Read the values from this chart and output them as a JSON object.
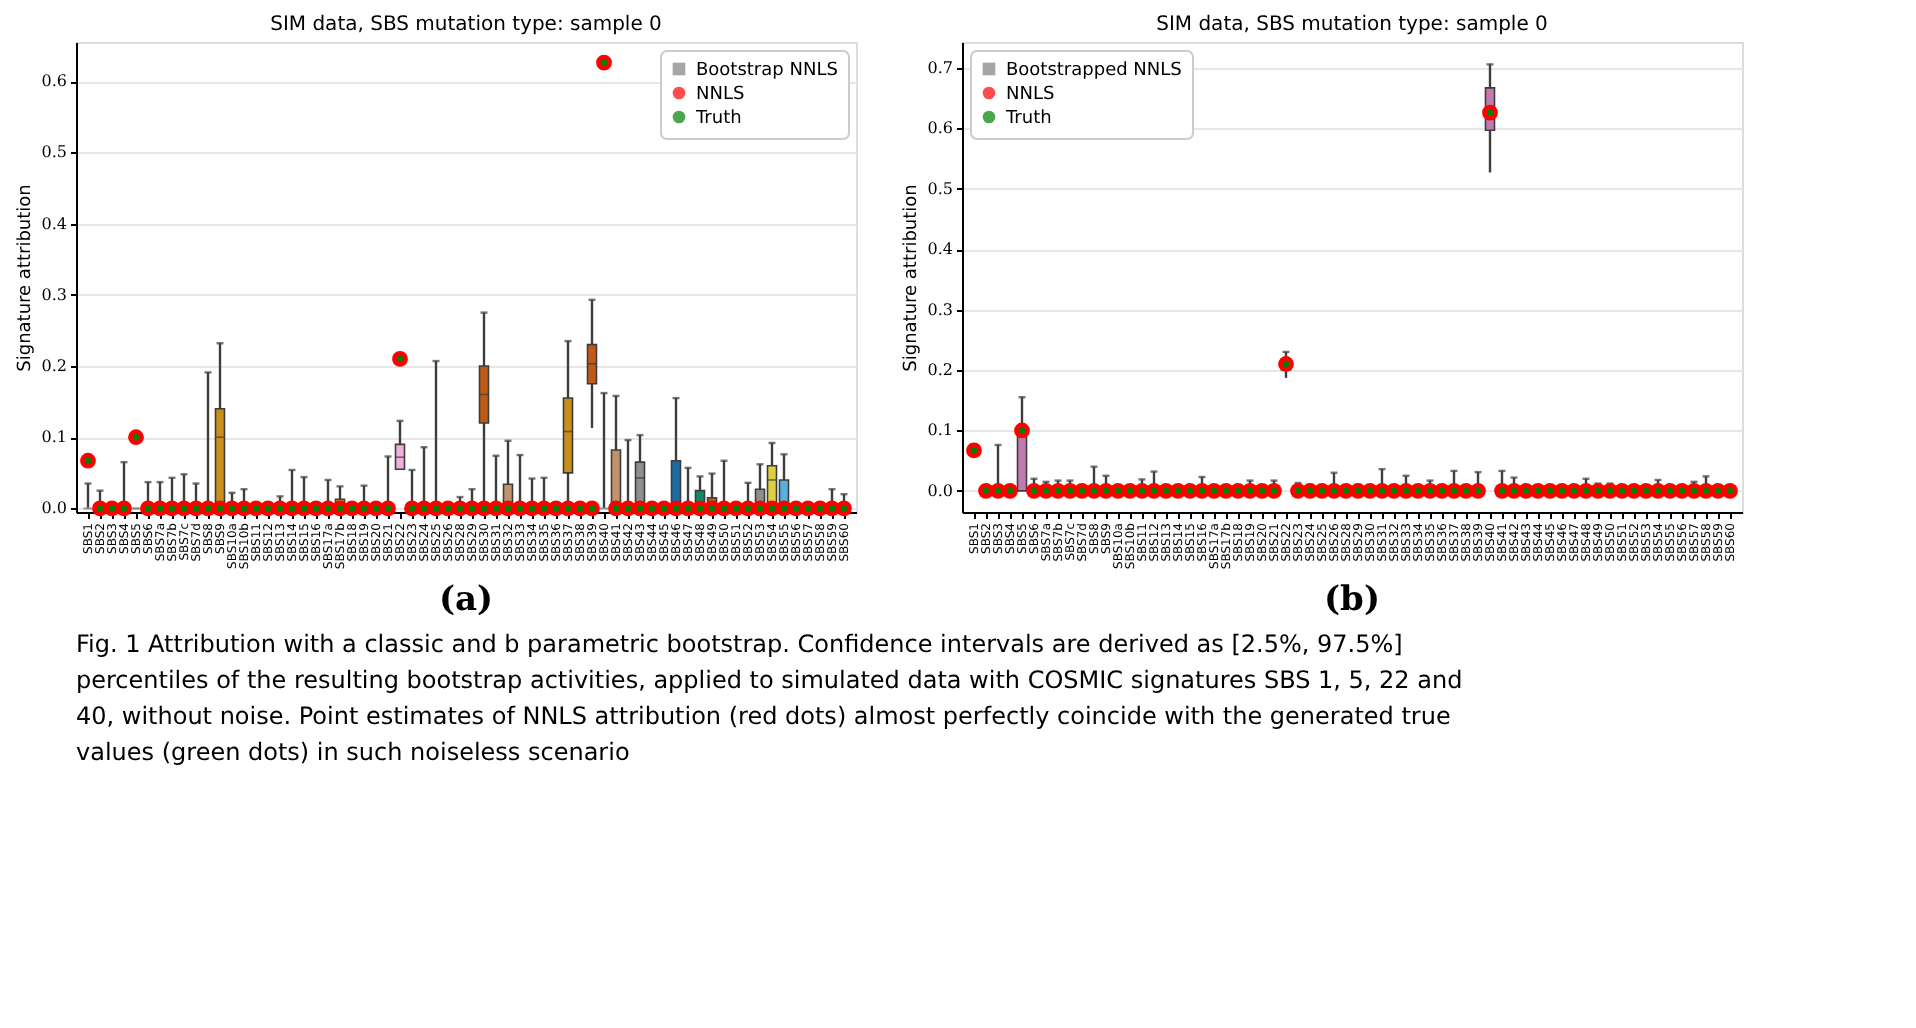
{
  "chart_data": [
    {
      "type": "box",
      "title": "SIM data, SBS mutation type: sample 0",
      "ylabel": "Signature attribution",
      "legend": "top right",
      "grid": "y",
      "ylim": [
        -0.005,
        0.655
      ],
      "yticks": [
        {
          "value": 0,
          "label": "0.0"
        },
        0.1,
        0.2,
        0.3,
        0.4,
        0.5,
        0.6
      ],
      "annotations": [
        "(a)",
        "Fig. 1  Attribution with a classic and b parametric bootstrap. Confidence intervals are derived as [2.5%, 97.5%] percentiles of the resulting bootstrap activities, applied to simulated data with COSMIC signatures SBS 1, 5, 22 and 40, without noise. Point estimates of NNLS attribution (red dots) almost perfectly coincide with the generated true values (green dots) in such noiseless scenario"
      ],
      "categories": [
        "SBS1",
        "SBS2",
        "SBS3",
        "SBS4",
        "SBS5",
        "SBS6",
        "SBS7a",
        "SBS7b",
        "SBS7c",
        "SBS7d",
        "SBS8",
        "SBS9",
        "SBS10a",
        "SBS10b",
        "SBS11",
        "SBS12",
        "SBS13",
        "SBS14",
        "SBS15",
        "SBS16",
        "SBS17a",
        "SBS17b",
        "SBS18",
        "SBS19",
        "SBS20",
        "SBS21",
        "SBS22",
        "SBS23",
        "SBS24",
        "SBS25",
        "SBS26",
        "SBS28",
        "SBS29",
        "SBS30",
        "SBS31",
        "SBS32",
        "SBS33",
        "SBS34",
        "SBS35",
        "SBS36",
        "SBS37",
        "SBS38",
        "SBS39",
        "SBS40",
        "SBS41",
        "SBS42",
        "SBS43",
        "SBS44",
        "SBS45",
        "SBS46",
        "SBS47",
        "SBS48",
        "SBS49",
        "SBS50",
        "SBS51",
        "SBS52",
        "SBS53",
        "SBS54",
        "SBS55",
        "SBS56",
        "SBS57",
        "SBS58",
        "SBS59",
        "SBS60"
      ],
      "series": [
        {
          "name": "Bootstrap NNLS",
          "type": "box",
          "color": "#808080",
          "colors": [
            "#8e8e8e",
            "#8e8e8e",
            "#8e8e8e",
            "#8e8e8e",
            "#8e8e8e",
            "#8e8e8e",
            "#8e8e8e",
            "#8e8e8e",
            "#8e8e8e",
            "#8e8e8e",
            "#8e8e8e",
            "#c8901a",
            "#8e8e8e",
            "#8e8e8e",
            "#8e8e8e",
            "#8e8e8e",
            "#8e8e8e",
            "#8e8e8e",
            "#8e8e8e",
            "#8e8e8e",
            "#8e8e8e",
            "#c8901a",
            "#8e8e8e",
            "#8e8e8e",
            "#8e8e8e",
            "#8e8e8e",
            "#f0b0dc",
            "#8e8e8e",
            "#8e8e8e",
            "#8e8e8e",
            "#8e8e8e",
            "#8e8e8e",
            "#8e8e8e",
            "#c05a14",
            "#8e8e8e",
            "#c0936a",
            "#8e8e8e",
            "#8e8e8e",
            "#8e8e8e",
            "#8e8e8e",
            "#c8901a",
            "#8e8e8e",
            "#c05a14",
            "#8e8e8e",
            "#c0936a",
            "#8e8e8e",
            "#8e8e8e",
            "#8e8e8e",
            "#8e8e8e",
            "#1a6aa5",
            "#8e8e8e",
            "#0f8a6a",
            "#c05a14",
            "#8e8e8e",
            "#8e8e8e",
            "#8e8e8e",
            "#8e8e8e",
            "#dcd040",
            "#5aaee0",
            "#8e8e8e",
            "#8e8e8e",
            "#8e8e8e",
            "#8e8e8e",
            "#8e8e8e"
          ],
          "boxes": [
            {
              "low": 0,
              "q1": 0,
              "median": 0,
              "q3": 0,
              "high": 0.035
            },
            {
              "low": 0,
              "q1": 0,
              "median": 0,
              "q3": 0,
              "high": 0.025
            },
            {
              "low": 0,
              "q1": 0,
              "median": 0,
              "q3": 0,
              "high": 0
            },
            {
              "low": 0,
              "q1": 0,
              "median": 0,
              "q3": 0,
              "high": 0.065
            },
            {
              "low": 0,
              "q1": 0,
              "median": 0,
              "q3": 0,
              "high": 0
            },
            {
              "low": 0,
              "q1": 0,
              "median": 0,
              "q3": 0,
              "high": 0.037
            },
            {
              "low": 0,
              "q1": 0,
              "median": 0,
              "q3": 0,
              "high": 0.037
            },
            {
              "low": 0,
              "q1": 0,
              "median": 0,
              "q3": 0,
              "high": 0.043
            },
            {
              "low": 0,
              "q1": 0,
              "median": 0,
              "q3": 0,
              "high": 0.048
            },
            {
              "low": 0,
              "q1": 0,
              "median": 0,
              "q3": 0,
              "high": 0.035
            },
            {
              "low": 0,
              "q1": 0,
              "median": 0,
              "q3": 0,
              "high": 0.191
            },
            {
              "low": 0,
              "q1": 0,
              "median": 0.1,
              "q3": 0.14,
              "high": 0.232
            },
            {
              "low": 0,
              "q1": 0,
              "median": 0,
              "q3": 0,
              "high": 0.022
            },
            {
              "low": 0,
              "q1": 0,
              "median": 0,
              "q3": 0,
              "high": 0.027
            },
            {
              "low": 0,
              "q1": 0,
              "median": 0,
              "q3": 0,
              "high": 0
            },
            {
              "low": 0,
              "q1": 0,
              "median": 0,
              "q3": 0,
              "high": 0
            },
            {
              "low": 0,
              "q1": 0,
              "median": 0,
              "q3": 0,
              "high": 0.017
            },
            {
              "low": 0,
              "q1": 0,
              "median": 0,
              "q3": 0,
              "high": 0.054
            },
            {
              "low": 0,
              "q1": 0,
              "median": 0,
              "q3": 0,
              "high": 0.044
            },
            {
              "low": 0,
              "q1": 0,
              "median": 0,
              "q3": 0,
              "high": 0
            },
            {
              "low": 0,
              "q1": 0,
              "median": 0,
              "q3": 0,
              "high": 0.04
            },
            {
              "low": 0,
              "q1": 0,
              "median": 0,
              "q3": 0.013,
              "high": 0.031
            },
            {
              "low": 0,
              "q1": 0,
              "median": 0,
              "q3": 0,
              "high": 0
            },
            {
              "low": 0,
              "q1": 0,
              "median": 0,
              "q3": 0,
              "high": 0.032
            },
            {
              "low": 0,
              "q1": 0,
              "median": 0,
              "q3": 0,
              "high": 0
            },
            {
              "low": 0,
              "q1": 0,
              "median": 0,
              "q3": 0,
              "high": 0.073
            },
            {
              "low": 0.055,
              "q1": 0.055,
              "median": 0.072,
              "q3": 0.09,
              "high": 0.123
            },
            {
              "low": 0,
              "q1": 0,
              "median": 0,
              "q3": 0,
              "high": 0.054
            },
            {
              "low": 0,
              "q1": 0,
              "median": 0,
              "q3": 0,
              "high": 0.086
            },
            {
              "low": 0,
              "q1": 0,
              "median": 0,
              "q3": 0,
              "high": 0.207
            },
            {
              "low": 0,
              "q1": 0,
              "median": 0,
              "q3": 0,
              "high": 0
            },
            {
              "low": 0,
              "q1": 0,
              "median": 0,
              "q3": 0,
              "high": 0.016
            },
            {
              "low": 0,
              "q1": 0,
              "median": 0,
              "q3": 0,
              "high": 0.027
            },
            {
              "low": 0,
              "q1": 0.12,
              "median": 0.16,
              "q3": 0.2,
              "high": 0.275
            },
            {
              "low": 0,
              "q1": 0,
              "median": 0,
              "q3": 0,
              "high": 0.074
            },
            {
              "low": 0,
              "q1": 0,
              "median": 0,
              "q3": 0.034,
              "high": 0.095
            },
            {
              "low": 0,
              "q1": 0,
              "median": 0,
              "q3": 0,
              "high": 0.075
            },
            {
              "low": 0,
              "q1": 0,
              "median": 0,
              "q3": 0,
              "high": 0.042
            },
            {
              "low": 0,
              "q1": 0,
              "median": 0,
              "q3": 0,
              "high": 0.043
            },
            {
              "low": 0,
              "q1": 0,
              "median": 0,
              "q3": 0,
              "high": 0
            },
            {
              "low": 0,
              "q1": 0.05,
              "median": 0.108,
              "q3": 0.155,
              "high": 0.235
            },
            {
              "low": 0,
              "q1": 0,
              "median": 0,
              "q3": 0,
              "high": 0
            },
            {
              "low": 0.113,
              "q1": 0.175,
              "median": 0.203,
              "q3": 0.23,
              "high": 0.293
            },
            {
              "low": 0,
              "q1": 0,
              "median": 0,
              "q3": 0,
              "high": 0.162
            },
            {
              "low": 0,
              "q1": 0,
              "median": 0,
              "q3": 0.082,
              "high": 0.158
            },
            {
              "low": 0,
              "q1": 0,
              "median": 0,
              "q3": 0,
              "high": 0.096
            },
            {
              "low": 0,
              "q1": 0,
              "median": 0.043,
              "q3": 0.065,
              "high": 0.103
            },
            {
              "low": 0,
              "q1": 0,
              "median": 0,
              "q3": 0,
              "high": 0
            },
            {
              "low": 0,
              "q1": 0,
              "median": 0,
              "q3": 0,
              "high": 0
            },
            {
              "low": 0,
              "q1": 0,
              "median": 0,
              "q3": 0.067,
              "high": 0.155
            },
            {
              "low": 0,
              "q1": 0,
              "median": 0,
              "q3": 0,
              "high": 0.057
            },
            {
              "low": 0,
              "q1": 0,
              "median": 0,
              "q3": 0.025,
              "high": 0.045
            },
            {
              "low": 0,
              "q1": 0,
              "median": 0,
              "q3": 0.015,
              "high": 0.049
            },
            {
              "low": 0,
              "q1": 0,
              "median": 0,
              "q3": 0,
              "high": 0.067
            },
            {
              "low": 0,
              "q1": 0,
              "median": 0,
              "q3": 0,
              "high": 0
            },
            {
              "low": 0,
              "q1": 0,
              "median": 0,
              "q3": 0,
              "high": 0.036
            },
            {
              "low": 0,
              "q1": 0,
              "median": 0,
              "q3": 0.027,
              "high": 0.062
            },
            {
              "low": 0,
              "q1": 0,
              "median": 0.04,
              "q3": 0.06,
              "high": 0.092
            },
            {
              "low": 0,
              "q1": 0,
              "median": 0,
              "q3": 0.04,
              "high": 0.076
            },
            {
              "low": 0,
              "q1": 0,
              "median": 0,
              "q3": 0,
              "high": 0
            },
            {
              "low": 0,
              "q1": 0,
              "median": 0,
              "q3": 0,
              "high": 0
            },
            {
              "low": 0,
              "q1": 0,
              "median": 0,
              "q3": 0,
              "high": 0
            },
            {
              "low": 0,
              "q1": 0,
              "median": 0,
              "q3": 0,
              "high": 0.027
            },
            {
              "low": 0,
              "q1": 0,
              "median": 0,
              "q3": 0,
              "high": 0.02
            }
          ]
        },
        {
          "name": "NNLS",
          "type": "scatter",
          "marker": "circle",
          "color": "#ff0000",
          "values": [
            0.067,
            0,
            0,
            0,
            0.1,
            0,
            0,
            0,
            0,
            0,
            0,
            0,
            0,
            0,
            0,
            0,
            0,
            0,
            0,
            0,
            0,
            0,
            0,
            0,
            0,
            0,
            0.21,
            0,
            0,
            0,
            0,
            0,
            0,
            0,
            0,
            0,
            0,
            0,
            0,
            0,
            0,
            0,
            0,
            0.626,
            0,
            0,
            0,
            0,
            0,
            0,
            0,
            0,
            0,
            0,
            0,
            0,
            0,
            0,
            0,
            0,
            0,
            0,
            0,
            0
          ]
        },
        {
          "name": "Truth",
          "type": "scatter",
          "marker": "circle",
          "color": "#008000",
          "values": [
            0.067,
            0,
            0,
            0,
            0.1,
            0,
            0,
            0,
            0,
            0,
            0,
            0,
            0,
            0,
            0,
            0,
            0,
            0,
            0,
            0,
            0,
            0,
            0,
            0,
            0,
            0,
            0.21,
            0,
            0,
            0,
            0,
            0,
            0,
            0,
            0,
            0,
            0,
            0,
            0,
            0,
            0,
            0,
            0,
            0.626,
            0,
            0,
            0,
            0,
            0,
            0,
            0,
            0,
            0,
            0,
            0,
            0,
            0,
            0,
            0,
            0,
            0,
            0,
            0,
            0
          ]
        }
      ]
    },
    {
      "type": "box",
      "title": "SIM data, SBS mutation type: sample 0",
      "ylabel": "Signature attribution",
      "legend": "top left",
      "grid": "y",
      "ylim": [
        -0.035,
        0.743
      ],
      "yticks": [
        {
          "value": 0,
          "label": "0.0"
        },
        0.1,
        0.2,
        0.3,
        0.4,
        0.5,
        0.6,
        0.7
      ],
      "annotations": [
        "(b)"
      ],
      "categories": [
        "SBS1",
        "SBS2",
        "SBS3",
        "SBS4",
        "SBS5",
        "SBS6",
        "SBS7a",
        "SBS7b",
        "SBS7c",
        "SBS7d",
        "SBS8",
        "SBS9",
        "SBS10a",
        "SBS10b",
        "SBS11",
        "SBS12",
        "SBS13",
        "SBS14",
        "SBS15",
        "SBS16",
        "SBS17a",
        "SBS17b",
        "SBS18",
        "SBS19",
        "SBS20",
        "SBS21",
        "SBS22",
        "SBS23",
        "SBS24",
        "SBS25",
        "SBS26",
        "SBS28",
        "SBS29",
        "SBS30",
        "SBS31",
        "SBS32",
        "SBS33",
        "SBS34",
        "SBS35",
        "SBS36",
        "SBS37",
        "SBS38",
        "SBS39",
        "SBS40",
        "SBS41",
        "SBS42",
        "SBS43",
        "SBS44",
        "SBS45",
        "SBS46",
        "SBS47",
        "SBS48",
        "SBS49",
        "SBS50",
        "SBS51",
        "SBS52",
        "SBS53",
        "SBS54",
        "SBS55",
        "SBS56",
        "SBS57",
        "SBS58",
        "SBS59",
        "SBS60"
      ],
      "series": [
        {
          "name": "Bootstrapped NNLS",
          "type": "box",
          "color": "#808080",
          "colors": [
            "#4a4a4a",
            "#8e8e8e",
            "#8e8e8e",
            "#8e8e8e",
            "#c27ab3",
            "#8e8e8e",
            "#8e8e8e",
            "#8e8e8e",
            "#8e8e8e",
            "#8e8e8e",
            "#8e8e8e",
            "#8e8e8e",
            "#8e8e8e",
            "#8e8e8e",
            "#8e8e8e",
            "#8e8e8e",
            "#8e8e8e",
            "#8e8e8e",
            "#8e8e8e",
            "#8e8e8e",
            "#8e8e8e",
            "#8e8e8e",
            "#8e8e8e",
            "#8e8e8e",
            "#8e8e8e",
            "#8e8e8e",
            "#4a4a4a",
            "#8e8e8e",
            "#8e8e8e",
            "#8e8e8e",
            "#8e8e8e",
            "#8e8e8e",
            "#8e8e8e",
            "#8e8e8e",
            "#8e8e8e",
            "#8e8e8e",
            "#8e8e8e",
            "#8e8e8e",
            "#8e8e8e",
            "#8e8e8e",
            "#8e8e8e",
            "#8e8e8e",
            "#8e8e8e",
            "#c27ab3",
            "#8e8e8e",
            "#8e8e8e",
            "#8e8e8e",
            "#8e8e8e",
            "#8e8e8e",
            "#8e8e8e",
            "#8e8e8e",
            "#8e8e8e",
            "#8e8e8e",
            "#8e8e8e",
            "#8e8e8e",
            "#8e8e8e",
            "#8e8e8e",
            "#8e8e8e",
            "#8e8e8e",
            "#8e8e8e",
            "#8e8e8e",
            "#8e8e8e",
            "#8e8e8e",
            "#8e8e8e"
          ],
          "boxes": [
            {
              "low": 0.057,
              "q1": 0.062,
              "median": 0.067,
              "q3": 0.072,
              "high": 0.077
            },
            {
              "low": 0,
              "q1": 0,
              "median": 0,
              "q3": 0,
              "high": 0.007
            },
            {
              "low": 0,
              "q1": 0,
              "median": 0,
              "q3": 0,
              "high": 0.076
            },
            {
              "low": 0,
              "q1": 0,
              "median": 0,
              "q3": 0,
              "high": 0
            },
            {
              "low": 0,
              "q1": 0,
              "median": 0.097,
              "q3": 0.1,
              "high": 0.155
            },
            {
              "low": 0,
              "q1": 0,
              "median": 0,
              "q3": 0,
              "high": 0.02
            },
            {
              "low": 0,
              "q1": 0,
              "median": 0,
              "q3": 0,
              "high": 0.015
            },
            {
              "low": 0,
              "q1": 0,
              "median": 0,
              "q3": 0,
              "high": 0.017
            },
            {
              "low": 0,
              "q1": 0,
              "median": 0,
              "q3": 0,
              "high": 0.017
            },
            {
              "low": 0,
              "q1": 0,
              "median": 0,
              "q3": 0,
              "high": 0.007
            },
            {
              "low": 0,
              "q1": 0,
              "median": 0,
              "q3": 0,
              "high": 0.04
            },
            {
              "low": 0,
              "q1": 0,
              "median": 0,
              "q3": 0,
              "high": 0.025
            },
            {
              "low": 0,
              "q1": 0,
              "median": 0,
              "q3": 0,
              "high": 0.007
            },
            {
              "low": 0,
              "q1": 0,
              "median": 0,
              "q3": 0,
              "high": 0.007
            },
            {
              "low": 0,
              "q1": 0,
              "median": 0,
              "q3": 0,
              "high": 0.019
            },
            {
              "low": 0,
              "q1": 0,
              "median": 0,
              "q3": 0,
              "high": 0.032
            },
            {
              "low": 0,
              "q1": 0,
              "median": 0,
              "q3": 0,
              "high": 0.007
            },
            {
              "low": 0,
              "q1": 0,
              "median": 0,
              "q3": 0,
              "high": 0
            },
            {
              "low": 0,
              "q1": 0,
              "median": 0,
              "q3": 0,
              "high": 0
            },
            {
              "low": 0,
              "q1": 0,
              "median": 0,
              "q3": 0,
              "high": 0.023
            },
            {
              "low": 0,
              "q1": 0,
              "median": 0,
              "q3": 0,
              "high": 0.007
            },
            {
              "low": 0,
              "q1": 0,
              "median": 0,
              "q3": 0,
              "high": 0.005
            },
            {
              "low": 0,
              "q1": 0,
              "median": 0,
              "q3": 0,
              "high": 0
            },
            {
              "low": 0,
              "q1": 0,
              "median": 0,
              "q3": 0,
              "high": 0.017
            },
            {
              "low": 0,
              "q1": 0,
              "median": 0,
              "q3": 0,
              "high": 0
            },
            {
              "low": 0,
              "q1": 0,
              "median": 0,
              "q3": 0,
              "high": 0.017
            },
            {
              "low": 0.187,
              "q1": 0.2,
              "median": 0.21,
              "q3": 0.218,
              "high": 0.23
            },
            {
              "low": 0,
              "q1": 0,
              "median": 0,
              "q3": 0,
              "high": 0.013
            },
            {
              "low": 0,
              "q1": 0,
              "median": 0,
              "q3": 0,
              "high": 0.01
            },
            {
              "low": 0,
              "q1": 0,
              "median": 0,
              "q3": 0,
              "high": 0
            },
            {
              "low": 0,
              "q1": 0,
              "median": 0,
              "q3": 0,
              "high": 0.03
            },
            {
              "low": 0,
              "q1": 0,
              "median": 0,
              "q3": 0,
              "high": 0.007
            },
            {
              "low": 0,
              "q1": 0,
              "median": 0,
              "q3": 0,
              "high": 0.01
            },
            {
              "low": 0,
              "q1": 0,
              "median": 0,
              "q3": 0,
              "high": 0
            },
            {
              "low": 0,
              "q1": 0,
              "median": 0,
              "q3": 0,
              "high": 0.036
            },
            {
              "low": 0,
              "q1": 0,
              "median": 0,
              "q3": 0,
              "high": 0
            },
            {
              "low": 0,
              "q1": 0,
              "median": 0,
              "q3": 0,
              "high": 0.025
            },
            {
              "low": 0,
              "q1": 0,
              "median": 0,
              "q3": 0,
              "high": 0.007
            },
            {
              "low": 0,
              "q1": 0,
              "median": 0,
              "q3": 0,
              "high": 0.017
            },
            {
              "low": 0,
              "q1": 0,
              "median": 0,
              "q3": 0,
              "high": 0
            },
            {
              "low": 0,
              "q1": 0,
              "median": 0,
              "q3": 0,
              "high": 0.033
            },
            {
              "low": 0,
              "q1": 0,
              "median": 0,
              "q3": 0,
              "high": 0
            },
            {
              "low": 0,
              "q1": 0,
              "median": 0,
              "q3": 0,
              "high": 0.031
            },
            {
              "low": 0.527,
              "q1": 0.597,
              "median": 0.63,
              "q3": 0.667,
              "high": 0.706
            },
            {
              "low": 0,
              "q1": 0,
              "median": 0,
              "q3": 0,
              "high": 0.033
            },
            {
              "low": 0,
              "q1": 0,
              "median": 0,
              "q3": 0,
              "high": 0.022
            },
            {
              "low": 0,
              "q1": 0,
              "median": 0,
              "q3": 0,
              "high": 0
            },
            {
              "low": 0,
              "q1": 0,
              "median": 0,
              "q3": 0,
              "high": 0
            },
            {
              "low": 0,
              "q1": 0,
              "median": 0,
              "q3": 0,
              "high": 0
            },
            {
              "low": 0,
              "q1": 0,
              "median": 0,
              "q3": 0,
              "high": 0
            },
            {
              "low": 0,
              "q1": 0,
              "median": 0,
              "q3": 0,
              "high": 0
            },
            {
              "low": 0,
              "q1": 0,
              "median": 0,
              "q3": 0,
              "high": 0.02
            },
            {
              "low": 0,
              "q1": 0,
              "median": 0,
              "q3": 0,
              "high": 0.012
            },
            {
              "low": 0,
              "q1": 0,
              "median": 0,
              "q3": 0,
              "high": 0.012
            },
            {
              "low": 0,
              "q1": 0,
              "median": 0,
              "q3": 0,
              "high": 0
            },
            {
              "low": 0,
              "q1": 0,
              "median": 0,
              "q3": 0,
              "high": 0
            },
            {
              "low": 0,
              "q1": 0,
              "median": 0,
              "q3": 0,
              "high": 0
            },
            {
              "low": 0,
              "q1": 0,
              "median": 0,
              "q3": 0,
              "high": 0.018
            },
            {
              "low": 0,
              "q1": 0,
              "median": 0,
              "q3": 0,
              "high": 0
            },
            {
              "low": 0,
              "q1": 0,
              "median": 0,
              "q3": 0,
              "high": 0
            },
            {
              "low": 0,
              "q1": 0,
              "median": 0,
              "q3": 0,
              "high": 0.015
            },
            {
              "low": 0,
              "q1": 0,
              "median": 0,
              "q3": 0,
              "high": 0.024
            },
            {
              "low": 0,
              "q1": 0,
              "median": 0,
              "q3": 0,
              "high": 0.005
            },
            {
              "low": 0,
              "q1": 0,
              "median": 0,
              "q3": 0,
              "high": 0
            }
          ]
        },
        {
          "name": "NNLS",
          "type": "scatter",
          "marker": "circle",
          "color": "#ff0000",
          "values": [
            0.067,
            0,
            0,
            0,
            0.1,
            0,
            0,
            0,
            0,
            0,
            0,
            0,
            0,
            0,
            0,
            0,
            0,
            0,
            0,
            0,
            0,
            0,
            0,
            0,
            0,
            0,
            0.21,
            0,
            0,
            0,
            0,
            0,
            0,
            0,
            0,
            0,
            0,
            0,
            0,
            0,
            0,
            0,
            0,
            0.626,
            0,
            0,
            0,
            0,
            0,
            0,
            0,
            0,
            0,
            0,
            0,
            0,
            0,
            0,
            0,
            0,
            0,
            0,
            0,
            0
          ]
        },
        {
          "name": "Truth",
          "type": "scatter",
          "marker": "circle",
          "color": "#008000",
          "values": [
            0.067,
            0,
            0,
            0,
            0.1,
            0,
            0,
            0,
            0,
            0,
            0,
            0,
            0,
            0,
            0,
            0,
            0,
            0,
            0,
            0,
            0,
            0,
            0,
            0,
            0,
            0,
            0.21,
            0,
            0,
            0,
            0,
            0,
            0,
            0,
            0,
            0,
            0,
            0,
            0,
            0,
            0,
            0,
            0,
            0.626,
            0,
            0,
            0,
            0,
            0,
            0,
            0,
            0,
            0,
            0,
            0,
            0,
            0,
            0,
            0,
            0,
            0,
            0,
            0,
            0
          ]
        }
      ]
    }
  ]
}
